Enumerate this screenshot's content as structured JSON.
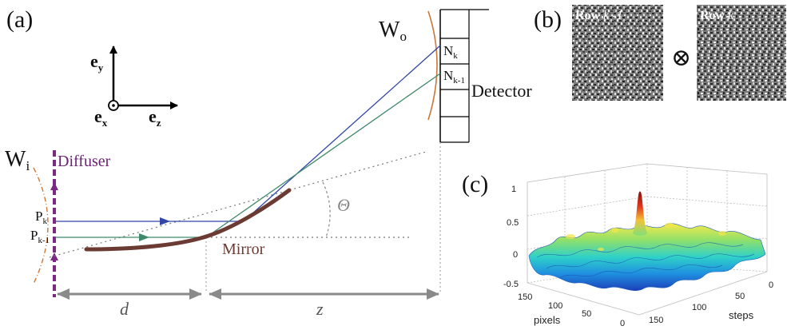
{
  "panels": {
    "a": "(a)",
    "b": "(b)",
    "c": "(c)"
  },
  "axes": {
    "ey": "e",
    "ey_sub": "y",
    "ex": "e",
    "ex_sub": "x",
    "ez": "e",
    "ez_sub": "z"
  },
  "labels": {
    "wo": "W",
    "wo_sub": "o",
    "wi": "W",
    "wi_sub": "i",
    "diffuser": "Diffuser",
    "detector": "Detector",
    "mirror": "Mirror",
    "theta": "Θ",
    "nk": "N",
    "nk_sub": "k",
    "nk1": "N",
    "nk1_sub": "k-1",
    "pk": "P",
    "pk_sub": "k",
    "pk1": "P",
    "pk1_sub": "k-1",
    "d": "d",
    "z": "z"
  },
  "speckle": {
    "row_word": "Row",
    "left_index": "k -1",
    "right_index": "k",
    "operator": "⊗"
  },
  "plot3d": {
    "z_ticks": [
      "1",
      "0.5",
      "0",
      "-0.5"
    ],
    "pixels_ticks": [
      "150",
      "100",
      "50",
      "0"
    ],
    "steps_ticks": [
      "150",
      "100",
      "50",
      "0"
    ],
    "pixels_label": "pixels",
    "steps_label": "steps"
  },
  "colors": {
    "blue_ray": "#3146a8",
    "green_ray": "#3e8a6a",
    "diffuser": "#7a2a82",
    "diffuser_text": "#6a1f74",
    "mirror": "#6b3a33",
    "wavefront": "#c9773a",
    "dim_arrow": "#8a8a8a",
    "theta": "#888888"
  }
}
